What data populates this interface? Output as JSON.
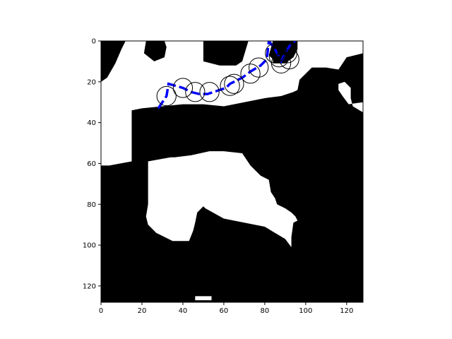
{
  "chart_data": {
    "type": "heatmap",
    "title": "",
    "xlabel": "",
    "ylabel": "",
    "xlim": [
      0,
      128
    ],
    "ylim": [
      128,
      0
    ],
    "grid": false,
    "xticks": [
      0,
      20,
      40,
      60,
      80,
      100,
      120
    ],
    "yticks": [
      0,
      20,
      40,
      60,
      80,
      100,
      120
    ],
    "colors": {
      "free": "#ffffff",
      "occupied": "#000000",
      "path": "#0000ff",
      "circle_edge": "#000000"
    },
    "occupancy_regions": [
      [
        [
          0,
          0
        ],
        [
          128,
          0
        ],
        [
          128,
          128
        ],
        [
          0,
          128
        ]
      ]
    ],
    "free_regions": [
      [
        [
          0,
          20
        ],
        [
          3,
          18
        ],
        [
          7,
          11
        ],
        [
          10,
          4
        ],
        [
          12,
          0
        ],
        [
          22,
          0
        ],
        [
          21,
          6
        ],
        [
          26,
          10
        ],
        [
          31,
          8
        ],
        [
          32,
          3
        ],
        [
          31,
          0
        ],
        [
          50,
          0
        ],
        [
          50,
          10
        ],
        [
          58,
          12
        ],
        [
          66,
          12
        ],
        [
          69,
          10
        ],
        [
          72,
          0
        ],
        [
          84,
          0
        ],
        [
          82,
          7
        ],
        [
          84,
          9
        ],
        [
          84,
          11
        ],
        [
          90,
          11
        ],
        [
          94,
          8
        ],
        [
          96,
          4
        ],
        [
          96,
          0
        ],
        [
          128,
          0
        ],
        [
          128,
          6
        ],
        [
          120,
          8
        ],
        [
          116,
          14
        ],
        [
          110,
          13
        ],
        [
          103,
          13
        ],
        [
          100,
          16
        ],
        [
          97,
          19
        ],
        [
          96,
          24
        ],
        [
          94,
          25
        ],
        [
          88,
          27
        ],
        [
          80,
          28
        ],
        [
          70,
          30
        ],
        [
          60,
          32
        ],
        [
          50,
          31
        ],
        [
          40,
          31
        ],
        [
          30,
          32
        ],
        [
          20,
          33
        ],
        [
          15,
          34
        ],
        [
          15,
          59
        ],
        [
          4,
          61
        ],
        [
          0,
          61
        ]
      ],
      [
        [
          116,
          21
        ],
        [
          119,
          20
        ],
        [
          122,
          23
        ],
        [
          122,
          28
        ],
        [
          123,
          32
        ],
        [
          128,
          35
        ],
        [
          128,
          0
        ],
        [
          128,
          30
        ],
        [
          121,
          31
        ],
        [
          118,
          27
        ],
        [
          116,
          24
        ]
      ],
      [
        [
          23,
          59
        ],
        [
          34,
          57
        ],
        [
          36,
          57
        ],
        [
          44,
          56
        ],
        [
          53,
          54
        ],
        [
          60,
          54
        ],
        [
          69,
          55
        ],
        [
          73,
          61
        ],
        [
          78,
          66
        ],
        [
          82,
          68
        ],
        [
          83,
          74
        ],
        [
          85,
          77
        ],
        [
          86,
          80
        ],
        [
          90,
          82
        ],
        [
          93,
          84
        ],
        [
          95,
          86
        ],
        [
          96,
          88
        ],
        [
          94,
          89
        ],
        [
          93,
          96
        ],
        [
          93,
          101
        ],
        [
          90,
          97
        ],
        [
          85,
          94
        ],
        [
          80,
          91
        ],
        [
          70,
          89
        ],
        [
          60,
          87
        ],
        [
          51,
          82
        ],
        [
          50,
          81
        ],
        [
          47,
          84
        ],
        [
          46,
          89
        ],
        [
          45,
          93
        ],
        [
          43,
          98
        ],
        [
          35,
          98
        ],
        [
          31,
          96
        ],
        [
          27,
          94
        ],
        [
          23,
          90
        ],
        [
          22,
          86
        ],
        [
          23,
          80
        ],
        [
          23,
          70
        ],
        [
          23,
          63
        ]
      ],
      [
        [
          46,
          125
        ],
        [
          54,
          125
        ],
        [
          54,
          127
        ],
        [
          46,
          127
        ]
      ]
    ],
    "path_x": [
      28,
      32,
      33,
      40,
      44,
      48,
      52,
      61,
      63,
      69,
      73,
      78,
      81,
      82,
      85,
      88,
      89,
      90,
      93,
      95
    ],
    "path_y": [
      33,
      27,
      21,
      23,
      25,
      26,
      26,
      23,
      21,
      18,
      15,
      12,
      9,
      0,
      4,
      10,
      8,
      6,
      1,
      0
    ],
    "circle_centers": [
      [
        32,
        27
      ],
      [
        40,
        23
      ],
      [
        46,
        25
      ],
      [
        53,
        25
      ],
      [
        63,
        22
      ],
      [
        65,
        21
      ],
      [
        73,
        16
      ],
      [
        77,
        13
      ],
      [
        85,
        6
      ],
      [
        87,
        8
      ],
      [
        88,
        11
      ],
      [
        91,
        6
      ],
      [
        92,
        9
      ]
    ],
    "circle_radius": 4.7
  }
}
